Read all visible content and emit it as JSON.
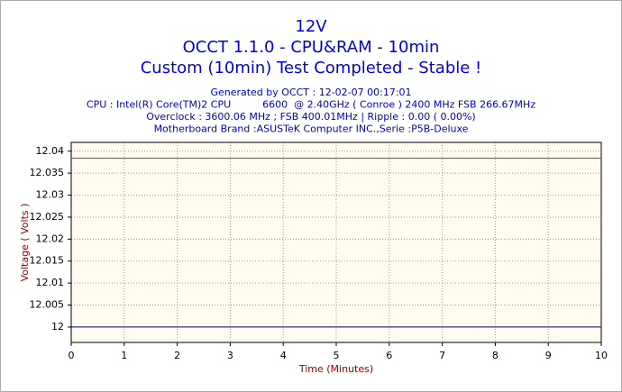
{
  "chart_data": {
    "type": "line",
    "title": [
      "12V",
      "OCCT 1.1.0 - CPU&RAM - 10min",
      "Custom (10min) Test Completed - Stable !"
    ],
    "subtitle": [
      "Generated by OCCT : 12-02-07 00:17:01",
      "CPU : Intel(R) Core(TM)2 CPU          6600  @ 2.40GHz ( Conroe ) 2400 MHz FSB 266.67MHz",
      "Overclock : 3600.06 MHz ; FSB 400.01MHz | Ripple : 0.00 ( 0.00%)",
      "Motherboard Brand :ASUSTeK Computer INC.,Serie :P5B-Deluxe"
    ],
    "x_label": "Time (Minutes)",
    "y_label": "Voltage ( Volts )",
    "x": [
      0,
      10
    ],
    "series": [
      {
        "color": "#b03030",
        "values": [
          12.0384,
          12.0384
        ]
      },
      {
        "color": "#000080",
        "values": [
          12.0,
          12.0
        ]
      }
    ],
    "xlim": [
      0,
      10
    ],
    "xticks": [
      0,
      1,
      2,
      3,
      4,
      5,
      6,
      7,
      8,
      9,
      10
    ],
    "ylim": [
      11.9965,
      12.042
    ],
    "yticks": [
      12,
      12.005,
      12.01,
      12.015,
      12.02,
      12.025,
      12.03,
      12.035,
      12.04
    ],
    "grid": true
  }
}
